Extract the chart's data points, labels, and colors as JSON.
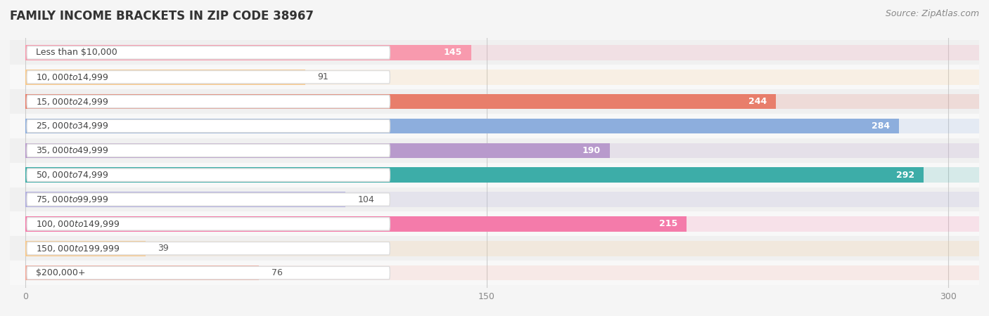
{
  "title": "FAMILY INCOME BRACKETS IN ZIP CODE 38967",
  "source_text": "Source: ZipAtlas.com",
  "categories": [
    "Less than $10,000",
    "$10,000 to $14,999",
    "$15,000 to $24,999",
    "$25,000 to $34,999",
    "$35,000 to $49,999",
    "$50,000 to $74,999",
    "$75,000 to $99,999",
    "$100,000 to $149,999",
    "$150,000 to $199,999",
    "$200,000+"
  ],
  "values": [
    145,
    91,
    244,
    284,
    190,
    292,
    104,
    215,
    39,
    76
  ],
  "bar_colors": [
    "#F89AAE",
    "#F9C98A",
    "#E87E6B",
    "#8DAEDD",
    "#B89ACC",
    "#3DADA8",
    "#B0ADDF",
    "#F47BAA",
    "#F9C98A",
    "#F4A99A"
  ],
  "label_colors": [
    "#555555",
    "#555555",
    "#ffffff",
    "#ffffff",
    "#ffffff",
    "#ffffff",
    "#555555",
    "#ffffff",
    "#555555",
    "#555555"
  ],
  "value_inside": [
    true,
    false,
    true,
    true,
    true,
    true,
    false,
    true,
    false,
    false
  ],
  "xlim": [
    -5,
    310
  ],
  "xticks": [
    0,
    150,
    300
  ],
  "background_color": "#f5f5f5",
  "title_fontsize": 12,
  "label_fontsize": 9,
  "value_fontsize": 9,
  "source_fontsize": 9
}
